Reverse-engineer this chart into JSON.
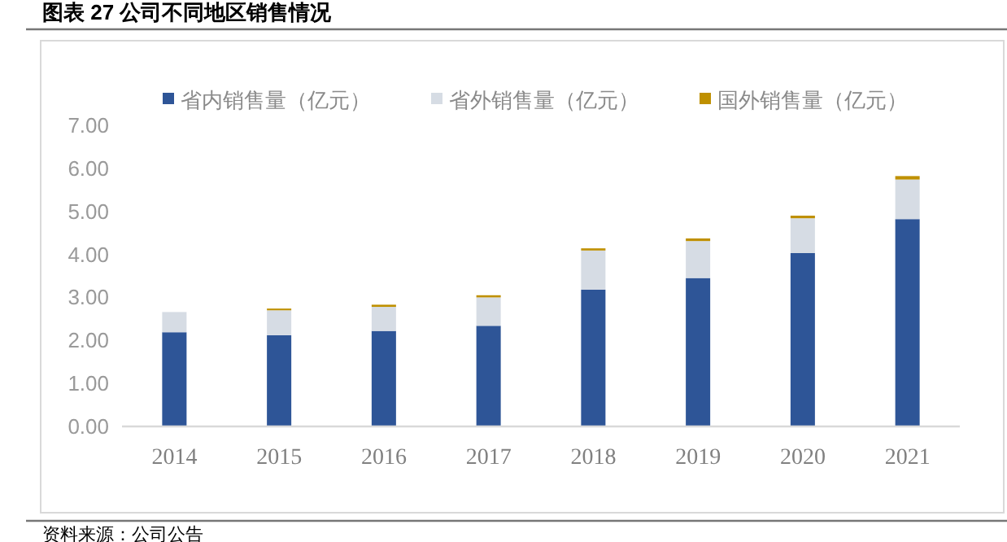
{
  "chart_data": {
    "type": "bar",
    "title": "图表 27 公司不同地区销售情况",
    "categories": [
      "2014",
      "2015",
      "2016",
      "2017",
      "2018",
      "2019",
      "2020",
      "2021"
    ],
    "stacked": true,
    "series": [
      {
        "name": "省内销售量（亿元）",
        "color": "#2e5597",
        "values": [
          2.19,
          2.12,
          2.22,
          2.34,
          3.18,
          3.45,
          4.03,
          4.82
        ]
      },
      {
        "name": "省外销售量（亿元）",
        "color": "#d6dce4",
        "values": [
          0.47,
          0.58,
          0.56,
          0.66,
          0.91,
          0.86,
          0.81,
          0.92
        ]
      },
      {
        "name": "国外销售量（亿元）",
        "color": "#bf9000",
        "values": [
          0,
          0.04,
          0.05,
          0.05,
          0.05,
          0.06,
          0.06,
          0.08
        ]
      }
    ],
    "ylim": [
      0,
      7
    ],
    "yticks": [
      {
        "value": 0,
        "label": "0.00"
      },
      {
        "value": 1,
        "label": "1.00"
      },
      {
        "value": 2,
        "label": "2.00"
      },
      {
        "value": 3,
        "label": "3.00"
      },
      {
        "value": 4,
        "label": "4.00"
      },
      {
        "value": 5,
        "label": "5.00"
      },
      {
        "value": 6,
        "label": "6.00"
      },
      {
        "value": 7,
        "label": "7.00"
      }
    ],
    "grid": false,
    "legend": "top",
    "annotations": [
      "资料来源：公司公告"
    ]
  }
}
